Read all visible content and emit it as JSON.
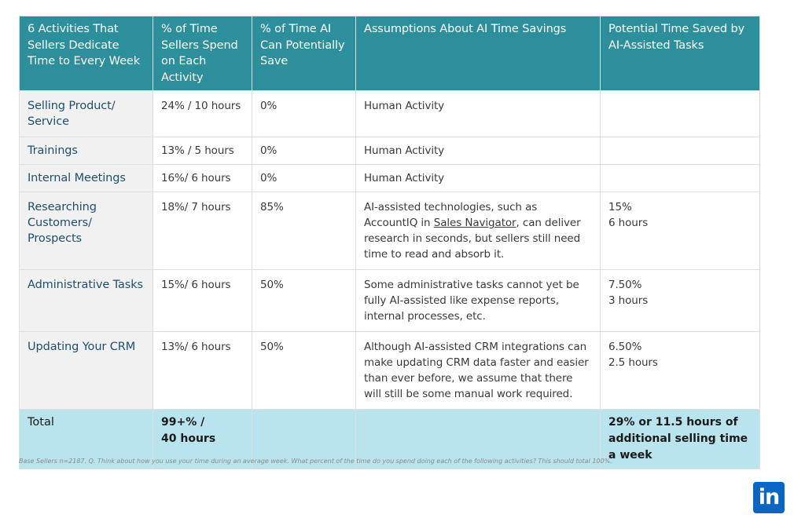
{
  "headers": [
    "6 Activities That Sellers Dedicate Time to Every Week",
    "% of Time Sellers Spend on Each Activity",
    "% of Time AI Can Potentially Save",
    "Assumptions About AI Time Savings",
    "Potential Time Saved by AI-Assisted Tasks"
  ],
  "rows": [
    {
      "activity": "Selling Product/ Service",
      "time_spent": "24% / 10 hours",
      "ai_save": "0%",
      "assumption_pre": "Human Activity",
      "assumption_link": "",
      "assumption_post": "",
      "pct_saved": "",
      "hours_saved": ""
    },
    {
      "activity": "Trainings",
      "time_spent": "13% / 5 hours",
      "ai_save": "0%",
      "assumption_pre": "Human Activity",
      "assumption_link": "",
      "assumption_post": "",
      "pct_saved": "",
      "hours_saved": ""
    },
    {
      "activity": "Internal Meetings",
      "time_spent": "16%/ 6 hours",
      "ai_save": "0%",
      "assumption_pre": "Human Activity",
      "assumption_link": "",
      "assumption_post": "",
      "pct_saved": "",
      "hours_saved": ""
    },
    {
      "activity": "Researching Customers/ Prospects",
      "time_spent": "18%/ 7 hours",
      "ai_save": "85%",
      "assumption_pre": "AI-assisted technologies, such as AccountIQ in ",
      "assumption_link": "Sales Navigator",
      "assumption_post": ", can deliver research in seconds, but sellers still need time to read and absorb it.",
      "pct_saved": "15%",
      "hours_saved": "6 hours"
    },
    {
      "activity": "Administrative Tasks",
      "time_spent": "15%/ 6 hours",
      "ai_save": "50%",
      "assumption_pre": "Some administrative tasks cannot yet be fully AI-assisted like expense reports, internal processes, etc.",
      "assumption_link": "",
      "assumption_post": "",
      "pct_saved": "7.50%",
      "hours_saved": "3 hours"
    },
    {
      "activity": "Updating Your CRM",
      "time_spent": "13%/ 6 hours",
      "ai_save": "50%",
      "assumption_pre": "Although AI-assisted CRM integrations can make updating CRM data faster and easier than ever before, we assume that there will still be some manual work required.",
      "assumption_link": "",
      "assumption_post": "",
      "pct_saved": "6.50%",
      "hours_saved": "2.5 hours"
    }
  ],
  "total": {
    "label": "Total",
    "time_spent_line1": "99+% /",
    "time_spent_line2": "40 hours",
    "saved": "29% or 11.5 hours of additional selling time a week"
  },
  "footnote": "Base Sellers n=2187. Q. Think about how you use your time during an average week.  What percent of the time do you spend doing each of the following activities?  This should total 100%.",
  "logo": {
    "text": "in",
    "icon": "linkedin-icon",
    "color": "#0a66c2"
  },
  "colors": {
    "header_bg": "#2d8f9b",
    "total_bg": "#b9e4ee",
    "activity_text": "#1f4f6c"
  }
}
